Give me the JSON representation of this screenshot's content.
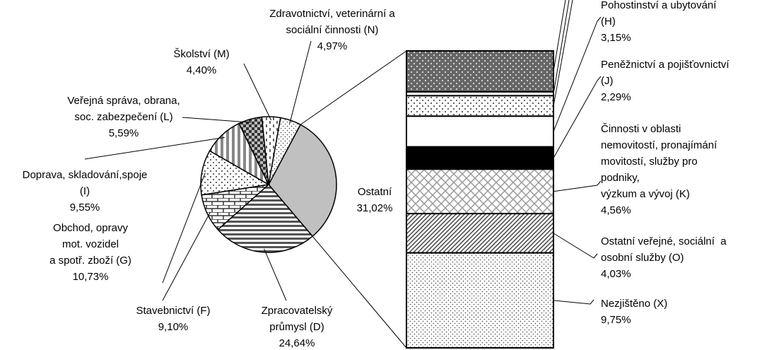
{
  "chart_data": [
    {
      "type": "pie",
      "categories": [
        [
          "Ostatní"
        ],
        [
          "Zpracovatelský",
          "průmysl (D)"
        ],
        [
          "Stavebnictví (F)"
        ],
        [
          "Obchod, opravy",
          "mot. vozidel",
          "a spotř. zboží (G)"
        ],
        [
          "Doprava, skladování,spoje",
          "(I)"
        ],
        [
          "Veřejná správa, obrana,",
          "soc. zabezpečení (L)"
        ],
        [
          "Školství (M)"
        ],
        [
          "Zdravotnictví, veterinární a",
          "sociální činnosti (N)"
        ]
      ],
      "values": [
        31.02,
        24.64,
        9.1,
        10.73,
        9.55,
        5.59,
        4.4,
        4.97
      ],
      "value_labels": [
        "31,02%",
        "24,64%",
        "9,10%",
        "10,73%",
        "9,55%",
        "5,59%",
        "4,40%",
        "4,97%"
      ]
    },
    {
      "type": "stacked_bar",
      "categories": [
        null,
        null,
        null,
        [
          "Pohostinství a ubytování",
          "(H)"
        ],
        [
          "Peněžnictví a pojišťovnictví",
          "(J)"
        ],
        [
          "Činnosti v oblasti",
          "nemovitostí, pronajímání",
          "movitostí, služby pro",
          "podniky,",
          "výzkum a vývoj (K)"
        ],
        [
          "Ostatní veřejné, sociální  a",
          "osobní služby (O)"
        ],
        [
          "Nezjištěno (X)"
        ]
      ],
      "values": [
        4.2,
        0.4,
        2.1,
        3.15,
        2.29,
        4.56,
        4.03,
        9.75
      ],
      "value_labels": [
        null,
        null,
        null,
        "3,15%",
        "2,29%",
        "4,56%",
        "4,03%",
        "9,75%"
      ]
    }
  ]
}
